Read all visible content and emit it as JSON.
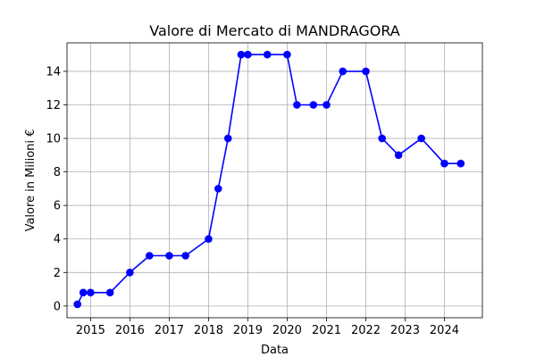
{
  "chart_data": {
    "type": "line",
    "title": "Valore di Mercato di MANDRAGORA",
    "xlabel": "Data",
    "ylabel": "Valore in Milioni €",
    "grid": true,
    "color": "#0000ff",
    "xlim": [
      "2014-05-27",
      "2024-12-19"
    ],
    "ylim": [
      -0.7,
      15.7
    ],
    "x_ticks": [
      "2015",
      "2016",
      "2017",
      "2018",
      "2019",
      "2020",
      "2021",
      "2022",
      "2023",
      "2024"
    ],
    "y_ticks": [
      0,
      2,
      4,
      6,
      8,
      10,
      12,
      14
    ],
    "series": [
      {
        "x": [
          "2014-09-01",
          "2014-10-25",
          "2015-01-01",
          "2015-07-01",
          "2016-01-01",
          "2016-07-01",
          "2017-01-01",
          "2017-06-01",
          "2018-01-01",
          "2018-04-01",
          "2018-07-01",
          "2018-10-31",
          "2019-01-01",
          "2019-07-01",
          "2020-01-01",
          "2020-04-01",
          "2020-09-01",
          "2021-01-01",
          "2021-06-01",
          "2022-01-01",
          "2022-06-01",
          "2022-11-01",
          "2023-06-01",
          "2024-01-01",
          "2024-06-01"
        ],
        "values": [
          0.1,
          0.8,
          0.8,
          0.8,
          2,
          3,
          3,
          3,
          4,
          7,
          10,
          15,
          15,
          15,
          15,
          12,
          12,
          12,
          14,
          14,
          10,
          9,
          10,
          8.5,
          8.5
        ]
      }
    ]
  }
}
